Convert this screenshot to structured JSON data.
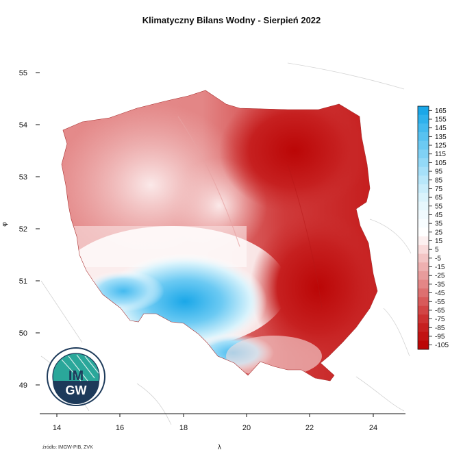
{
  "title": "Klimatyczny Bilans Wodny - Sierpień 2022",
  "axes": {
    "xlabel": "λ",
    "ylabel": "φ",
    "x_ticks": [
      "14",
      "16",
      "18",
      "20",
      "22",
      "24"
    ],
    "y_ticks": [
      "55",
      "54",
      "53",
      "52",
      "51",
      "50",
      "49"
    ],
    "xlim": [
      13.5,
      25
    ],
    "ylim": [
      48.5,
      55.5
    ]
  },
  "legend": {
    "labels": [
      "165",
      "155",
      "145",
      "135",
      "125",
      "115",
      "105",
      "95",
      "85",
      "75",
      "65",
      "55",
      "45",
      "35",
      "25",
      "15",
      "5",
      "-5",
      "-15",
      "-25",
      "-35",
      "-45",
      "-55",
      "-65",
      "-75",
      "-85",
      "-95",
      "-105"
    ],
    "colors": [
      "#1aa7e8",
      "#2eb1ec",
      "#44baef",
      "#58c2f1",
      "#6ccaf3",
      "#80d1f5",
      "#93d9f7",
      "#a6e0f9",
      "#b8e7fa",
      "#c9edfb",
      "#d9f3fc",
      "#e6f7fd",
      "#f0fafe",
      "#f8fdff",
      "#ffffff",
      "#fdf0f0",
      "#f9dada",
      "#f3c4c4",
      "#eeb0b0",
      "#e89c9c",
      "#e38686",
      "#dd7070",
      "#d85a5a",
      "#d24545",
      "#cc3131",
      "#c62020",
      "#c11212",
      "#bb0606"
    ]
  },
  "logo": {
    "text_top": "IM",
    "text_bottom": "GW"
  },
  "source": "źródło: IMGW-PIB, ZVK",
  "colors": {
    "deficit": "#c41a1a",
    "surplus": "#22aee9",
    "neutral": "#ffffff"
  }
}
